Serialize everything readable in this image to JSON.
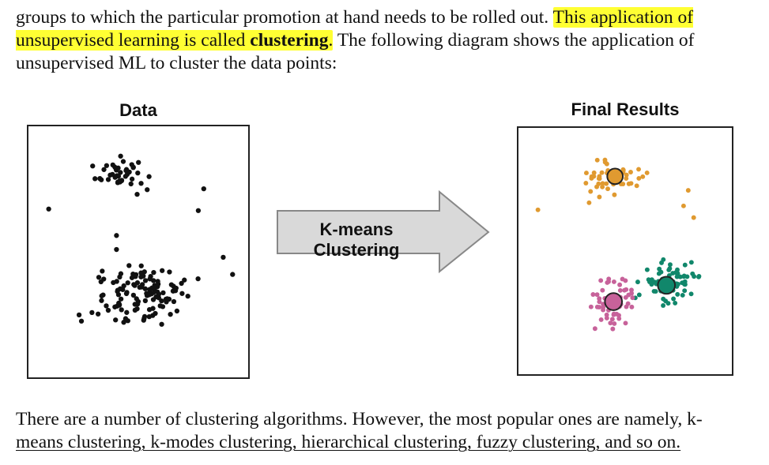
{
  "text": {
    "para1_plain": "groups to which the particular promotion at hand needs to be rolled out. ",
    "para1_highlight_a": "This application of unsupervised learning is called ",
    "para1_highlight_bold": "clustering",
    "para1_highlight_end": ".",
    "para1_rest": " The following diagram shows the application of unsupervised ML to cluster the data points:",
    "para2_start": "There are a number of clustering algorithms. However, the most popular ones are namely, k-",
    "para2_underlined": "means clustering, k-modes clustering, hierarchical clustering, fuzzy clustering, and so on."
  },
  "figure": {
    "left_title": "Data",
    "right_title": "Final Results",
    "arrow_label": "K-means Clustering"
  },
  "colors": {
    "highlight": "#ffff33",
    "points_raw": "#111111",
    "cluster_orange": "#e09a30",
    "cluster_green": "#11876b",
    "cluster_pink": "#c7629a",
    "arrow_fill": "#d9d9d9",
    "arrow_stroke": "#888888"
  }
}
